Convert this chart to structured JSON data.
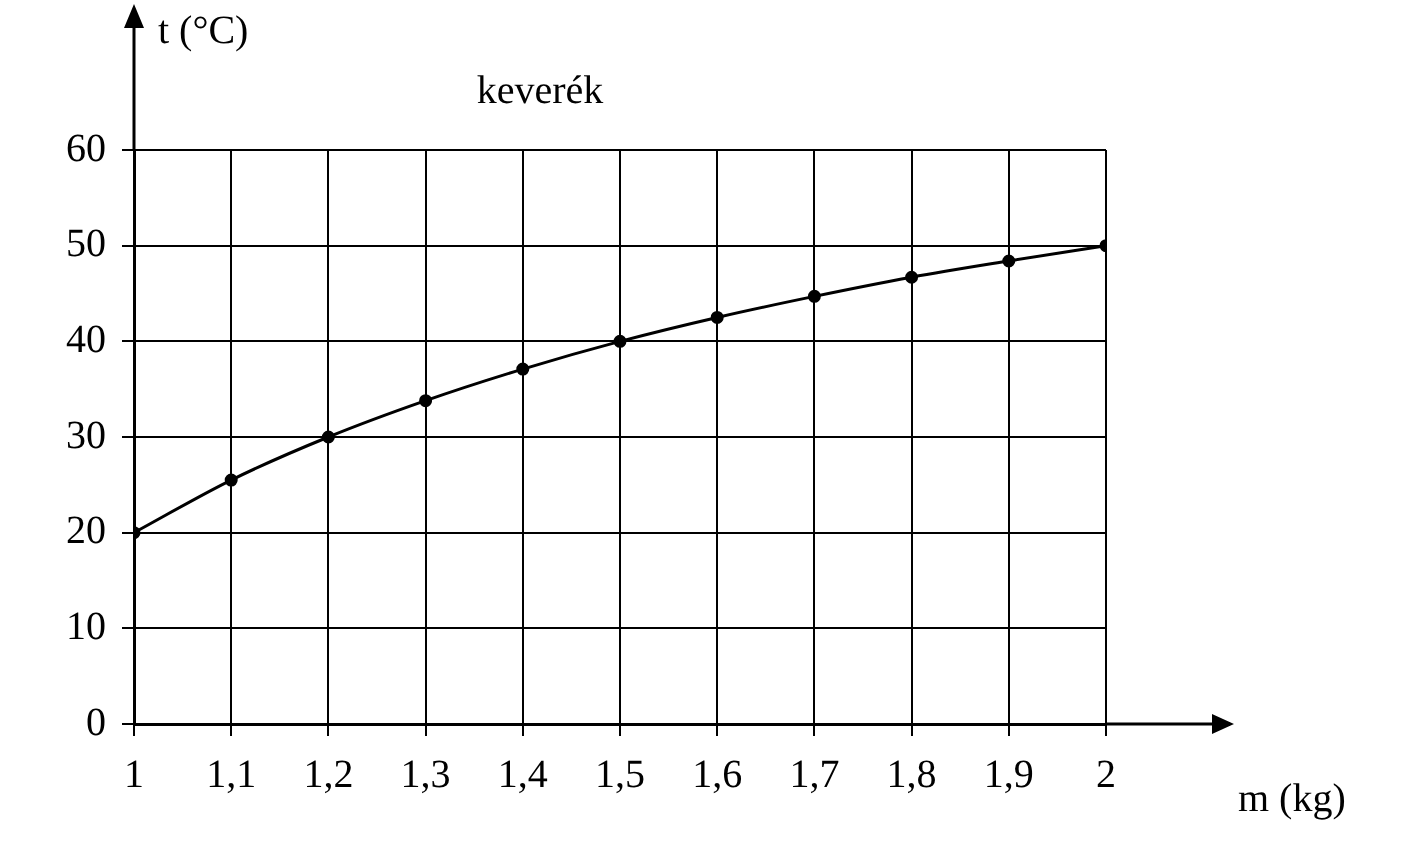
{
  "chart_data": {
    "type": "line",
    "title": "keverék",
    "xlabel": "m (kg)",
    "ylabel": "t (°C)",
    "x": [
      1,
      1.1,
      1.2,
      1.3,
      1.4,
      1.5,
      1.6,
      1.7,
      1.8,
      1.9,
      2
    ],
    "series": [
      {
        "color": "#000000",
        "values": [
          20,
          25.5,
          30,
          33.8,
          37.1,
          40,
          42.5,
          44.7,
          46.7,
          48.4,
          50
        ]
      }
    ],
    "xlim": [
      1,
      2
    ],
    "xticks": [
      1,
      {
        "value": 1.1,
        "label": "1,1"
      },
      {
        "value": 1.2,
        "label": "1,2"
      },
      {
        "value": 1.3,
        "label": "1,3"
      },
      {
        "value": 1.4,
        "label": "1,4"
      },
      {
        "value": 1.5,
        "label": "1,5"
      },
      {
        "value": 1.6,
        "label": "1,6"
      },
      {
        "value": 1.7,
        "label": "1,7"
      },
      {
        "value": 1.8,
        "label": "1,8"
      },
      {
        "value": 1.9,
        "label": "1,9"
      },
      2
    ],
    "ylim": [
      0,
      60
    ],
    "yticks": [
      0,
      10,
      20,
      30,
      40,
      50,
      60
    ],
    "grid": true,
    "legend": false,
    "marker": "circle",
    "line_style": "solid"
  }
}
